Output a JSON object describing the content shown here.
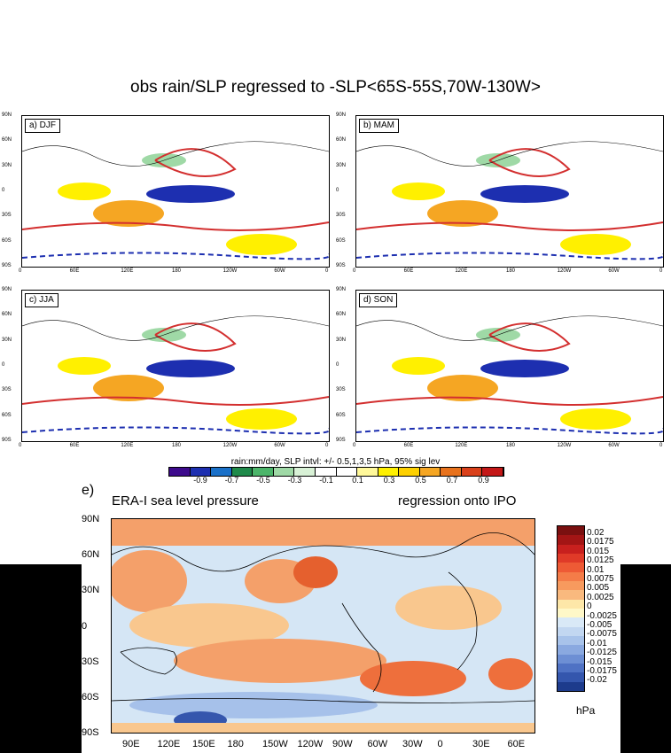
{
  "title": "obs rain/SLP regressed to -SLP<65S-55S,70W-130W>",
  "panels": [
    {
      "label": "a) DJF"
    },
    {
      "label": "b) MAM"
    },
    {
      "label": "c) JJA"
    },
    {
      "label": "d) SON"
    }
  ],
  "small_lat_ticks": [
    "90N",
    "60N",
    "30N",
    "0",
    "30S",
    "60S",
    "90S"
  ],
  "small_lon_ticks": [
    "0",
    "60E",
    "120E",
    "180",
    "120W",
    "60W",
    "0"
  ],
  "rain_colorbar": {
    "note": "rain:mm/day, SLP intvl: +/- 0.5,1,3,5 hPa, 95% sig lev",
    "labels": [
      "-0.9",
      "-0.7",
      "-0.5",
      "-0.3",
      "-0.1",
      "0.1",
      "0.3",
      "0.5",
      "0.7",
      "0.9"
    ],
    "colors": [
      "#3d0a8c",
      "#1d2fb0",
      "#1a70c8",
      "#1f8a4a",
      "#4cb56a",
      "#9fd9a6",
      "#d8f1d6",
      "#ffffff",
      "#ffffff",
      "#fff89a",
      "#fff000",
      "#fdd000",
      "#f5a623",
      "#e8721c",
      "#d9401a",
      "#c41818"
    ]
  },
  "panel_e": {
    "label": "e)",
    "title_left": "ERA-I sea level pressure",
    "title_right": "regression onto IPO",
    "lat_ticks": [
      "90N",
      "60N",
      "30N",
      "0",
      "30S",
      "60S",
      "90S"
    ],
    "lon_ticks": [
      "90E",
      "120E",
      "150E",
      "180",
      "150W",
      "120W",
      "90W",
      "60W",
      "30W",
      "0",
      "30E",
      "60E"
    ],
    "colorbar_labels": [
      "0.02",
      "0.0175",
      "0.015",
      "0.0125",
      "0.01",
      "0.0075",
      "0.005",
      "0.0025",
      "0",
      "-0.0025",
      "-0.005",
      "-0.0075",
      "-0.01",
      "-0.0125",
      "-0.015",
      "-0.0175",
      "-0.02"
    ],
    "colorbar_colors": [
      "#7a1010",
      "#a31515",
      "#c8201e",
      "#e03a28",
      "#ee5a35",
      "#f47c48",
      "#f79a5e",
      "#f9b97e",
      "#fde7a8",
      "#fff8c8",
      "#d9e9f7",
      "#c2d7f1",
      "#a8c3ea",
      "#8aa9e0",
      "#6d8fd4",
      "#4f72c4",
      "#3456ad",
      "#1d3b8c"
    ],
    "unit": "hPa"
  }
}
